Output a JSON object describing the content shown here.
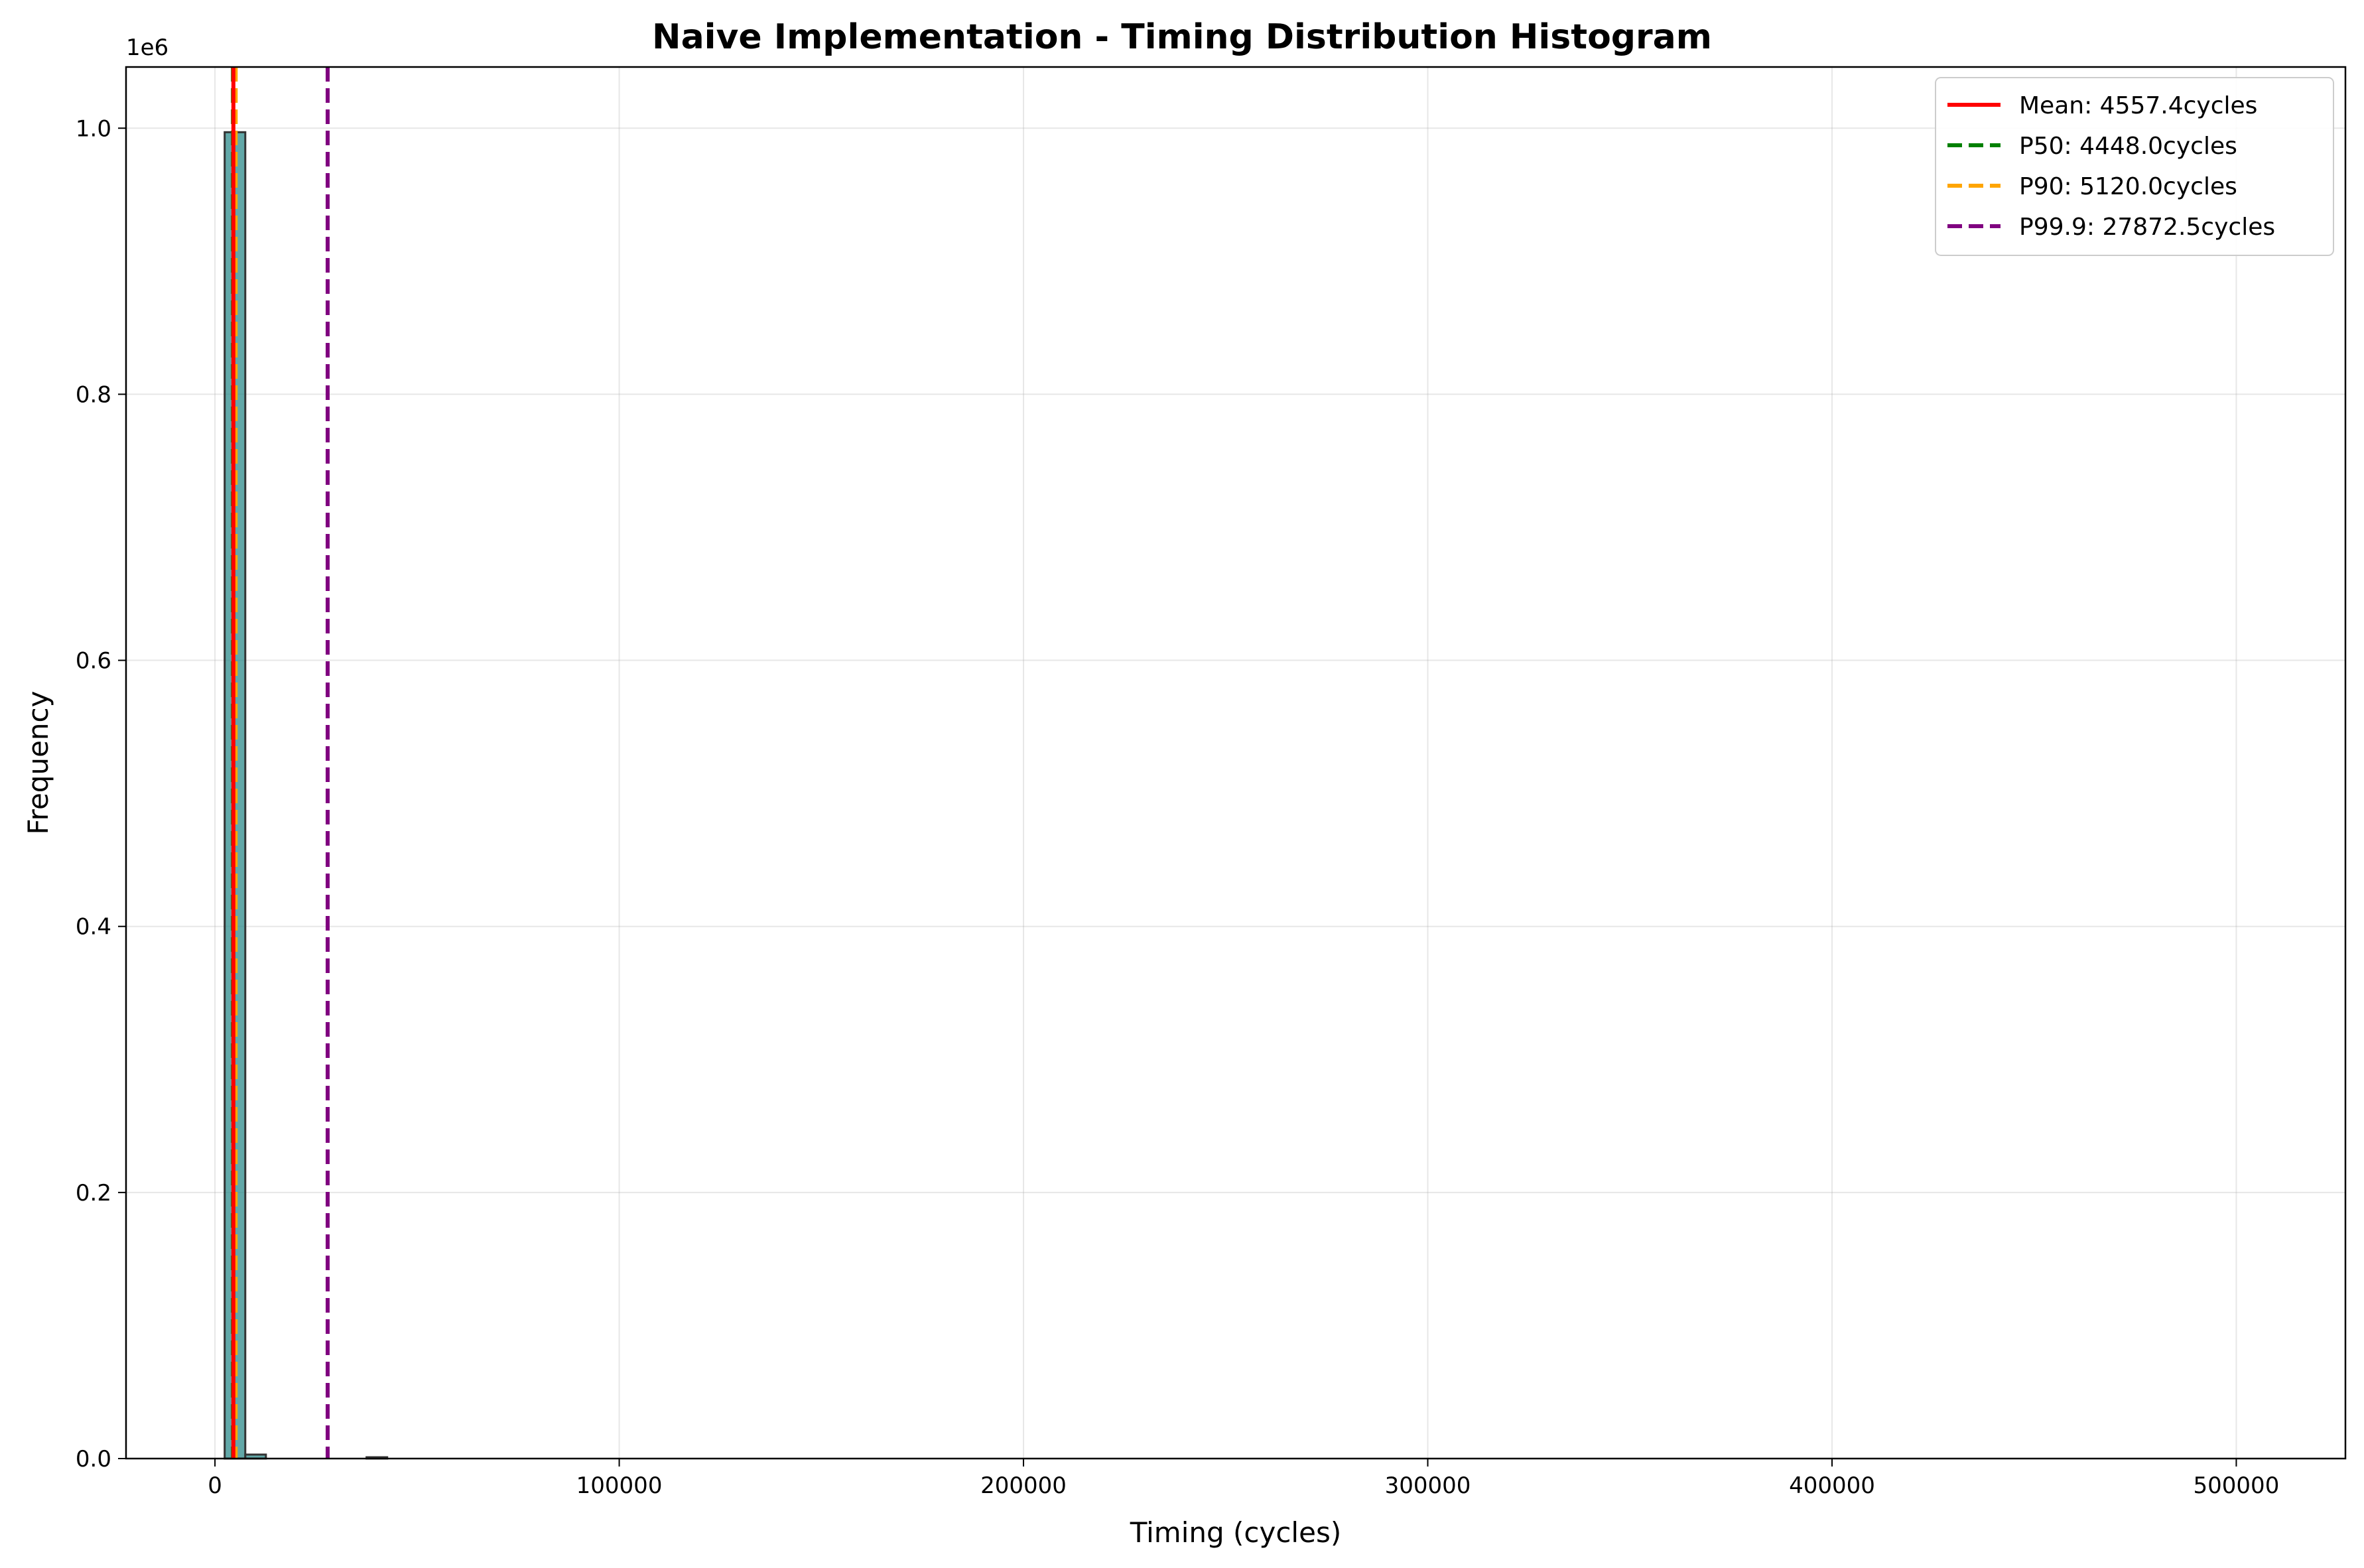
{
  "chart_data": {
    "type": "bar",
    "title": "Naive Implementation - Timing Distribution Histogram",
    "xlabel": "Timing (cycles)",
    "ylabel": "Frequency",
    "y_offset_label": "1e6",
    "xlim": [
      -22000,
      527000
    ],
    "ylim": [
      0,
      1.046
    ],
    "grid": true,
    "legend_position": "top-right",
    "x_ticks": [
      {
        "value": 0,
        "label": "0"
      },
      {
        "value": 100000,
        "label": "100000"
      },
      {
        "value": 200000,
        "label": "200000"
      },
      {
        "value": 300000,
        "label": "300000"
      },
      {
        "value": 400000,
        "label": "400000"
      },
      {
        "value": 500000,
        "label": "500000"
      }
    ],
    "y_ticks": [
      {
        "value": 0.0,
        "label": "0.0"
      },
      {
        "value": 0.2,
        "label": "0.2"
      },
      {
        "value": 0.4,
        "label": "0.4"
      },
      {
        "value": 0.6,
        "label": "0.6"
      },
      {
        "value": 0.8,
        "label": "0.8"
      },
      {
        "value": 1.0,
        "label": "1.0"
      }
    ],
    "bins": [
      {
        "start": 2400,
        "end": 7500,
        "value": 0.997
      },
      {
        "start": 7500,
        "end": 12600,
        "value": 0.003
      },
      {
        "start": 37500,
        "end": 42600,
        "value": 0.0008
      }
    ],
    "bar_fill": "#2e8b8b",
    "bar_edge": "#333333",
    "reference_lines": [
      {
        "label": "Mean: 4557.4cycles",
        "x": 4557.4,
        "color": "#ff0000",
        "dash": "solid"
      },
      {
        "label": "P50: 4448.0cycles",
        "x": 4448.0,
        "color": "#008000",
        "dash": "dashed"
      },
      {
        "label": "P90: 5120.0cycles",
        "x": 5120.0,
        "color": "#ffa500",
        "dash": "dashed"
      },
      {
        "label": "P99.9: 27872.5cycles",
        "x": 27872.5,
        "color": "#800080",
        "dash": "dashed"
      }
    ]
  }
}
